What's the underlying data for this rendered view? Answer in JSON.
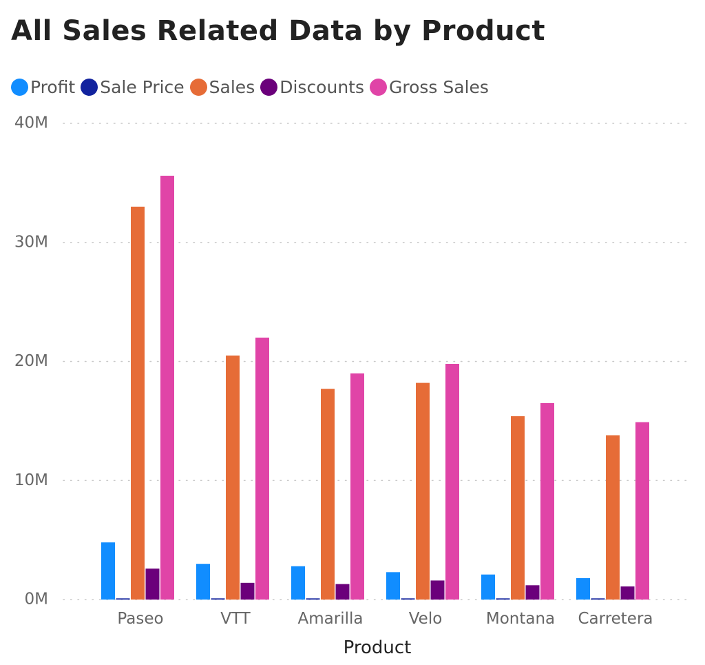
{
  "chart_data": {
    "type": "bar",
    "title": "All Sales Related Data by Product",
    "xlabel": "Product",
    "ylabel": "",
    "ylim": [
      0,
      40000000
    ],
    "yticks": [
      0,
      10000000,
      20000000,
      30000000,
      40000000
    ],
    "ytick_labels": [
      "0M",
      "10M",
      "20M",
      "30M",
      "40M"
    ],
    "grid": true,
    "legend_position": "top-left",
    "categories": [
      "Paseo",
      "VTT",
      "Amarilla",
      "Velo",
      "Montana",
      "Carretera"
    ],
    "series": [
      {
        "name": "Profit",
        "color": "#118DFF",
        "values": [
          4800000,
          3000000,
          2800000,
          2300000,
          2100000,
          1800000
        ]
      },
      {
        "name": "Sale Price",
        "color": "#12239E",
        "values": [
          100000,
          100000,
          100000,
          100000,
          100000,
          100000
        ]
      },
      {
        "name": "Sales",
        "color": "#E66C37",
        "values": [
          33000000,
          20500000,
          17700000,
          18200000,
          15400000,
          13800000
        ]
      },
      {
        "name": "Discounts",
        "color": "#6B007B",
        "values": [
          2600000,
          1400000,
          1300000,
          1600000,
          1200000,
          1100000
        ]
      },
      {
        "name": "Gross Sales",
        "color": "#E044A7",
        "values": [
          35600000,
          22000000,
          19000000,
          19800000,
          16500000,
          14900000
        ]
      }
    ]
  }
}
